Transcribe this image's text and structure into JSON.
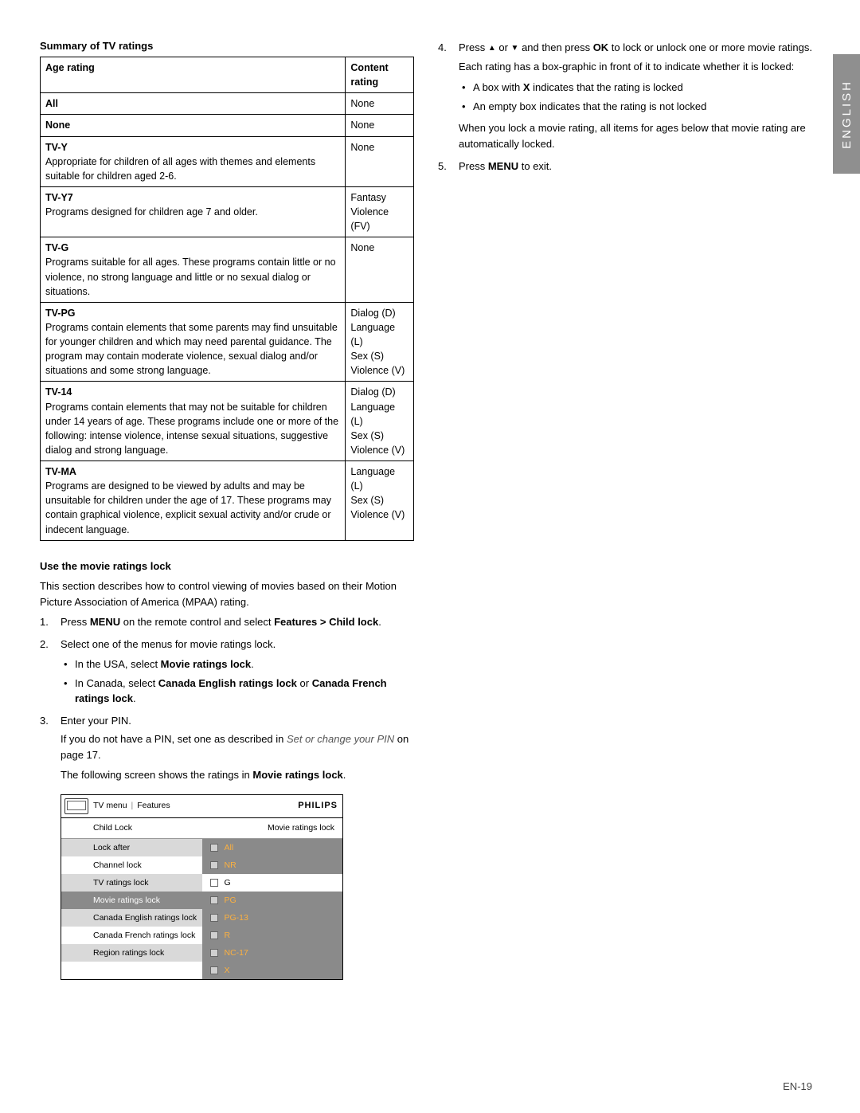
{
  "side_tab": "ENGLISH",
  "page_num": "EN-19",
  "summary": {
    "heading": "Summary of TV ratings",
    "col1_header": "Age rating",
    "col2_header": "Content rating",
    "rows": [
      {
        "name": "All",
        "desc": "",
        "content": "None"
      },
      {
        "name": "None",
        "desc": "",
        "content": "None"
      },
      {
        "name": "TV-Y",
        "desc": "Appropriate for children of all ages with themes and elements suitable for children aged 2-6.",
        "content": "None"
      },
      {
        "name": "TV-Y7",
        "desc": "Programs designed for children age 7 and older.",
        "content": "Fantasy Violence (FV)"
      },
      {
        "name": "TV-G",
        "desc": "Programs suitable for all ages.  These programs contain little or no violence, no strong language and little or no sexual dialog or situations.",
        "content": "None"
      },
      {
        "name": "TV-PG",
        "desc": "Programs contain elements that some parents may find unsuitable for younger children and which may need parental guidance.  The program may contain moderate violence, sexual dialog and/or situations and some strong language.",
        "content": "Dialog (D)\nLanguage (L)\nSex (S)\nViolence (V)"
      },
      {
        "name": "TV-14",
        "desc": "Programs contain elements that may not be suitable for children under 14 years of age.  These programs include one or more of the following: intense violence, intense sexual situations, suggestive dialog and strong language.",
        "content": "Dialog (D)\nLanguage (L)\nSex (S)\nViolence (V)"
      },
      {
        "name": "TV-MA",
        "desc": "Programs are designed to be viewed by adults and may be unsuitable for children under the age of 17. These programs may contain graphical violence, explicit sexual activity and/or crude or indecent language.",
        "content": "Language (L)\nSex (S)\nViolence (V)"
      }
    ]
  },
  "movie_lock": {
    "heading": "Use the movie ratings lock",
    "intro": "This section describes how to control viewing of movies based on their Motion Picture Association of America (MPAA) rating.",
    "step1_a": "Press ",
    "step1_menu": "MENU",
    "step1_b": " on the remote control and select ",
    "step1_path": "Features > Child lock",
    "step1_c": ".",
    "step2": "Select one of the menus for movie ratings lock.",
    "step2_b1_a": "In the USA, select ",
    "step2_b1_bold": "Movie ratings lock",
    "step2_b1_b": ".",
    "step2_b2_a": "In Canada, select ",
    "step2_b2_bold1": "Canada English ratings lock",
    "step2_b2_mid": " or ",
    "step2_b2_bold2": "Canada French ratings lock",
    "step2_b2_b": ".",
    "step3": "Enter your PIN.",
    "step3_note_a": "If you do not have a PIN, set one as described in ",
    "step3_note_it": "Set or change your PIN",
    "step3_note_b": " on page 17.",
    "step3_tail_a": "The following screen shows the ratings in ",
    "step3_tail_bold": "Movie ratings lock",
    "step3_tail_b": "."
  },
  "tv_menu": {
    "breadcrumb_a": "TV menu",
    "breadcrumb_b": "Features",
    "brand": "PHILIPS",
    "sub_left": "Child Lock",
    "sub_right": "Movie ratings lock",
    "left_items": [
      {
        "label": "Lock after",
        "style": "alt"
      },
      {
        "label": "Channel lock",
        "style": ""
      },
      {
        "label": "TV ratings lock",
        "style": "alt"
      },
      {
        "label": "Movie ratings lock",
        "style": "sel"
      },
      {
        "label": "Canada English ratings lock",
        "style": "alt"
      },
      {
        "label": "Canada French ratings lock",
        "style": ""
      },
      {
        "label": "Region ratings lock",
        "style": "alt"
      },
      {
        "label": "",
        "style": ""
      }
    ],
    "right_items": [
      {
        "label": "All",
        "on": true,
        "chk": "fill"
      },
      {
        "label": "NR",
        "on": true,
        "chk": "fill"
      },
      {
        "label": "G",
        "on": false,
        "chk": "empty"
      },
      {
        "label": "PG",
        "on": true,
        "chk": "fill"
      },
      {
        "label": "PG-13",
        "on": true,
        "chk": "fill"
      },
      {
        "label": "R",
        "on": true,
        "chk": "fill"
      },
      {
        "label": "NC-17",
        "on": true,
        "chk": "fill"
      },
      {
        "label": "X",
        "on": true,
        "chk": "fill"
      }
    ]
  },
  "right": {
    "step4_a": "Press ",
    "step4_b": " or ",
    "step4_c": " and then press ",
    "step4_ok": "OK",
    "step4_d": " to lock or unlock one or more movie ratings.",
    "step4_p2": "Each rating has a box-graphic in front of it to indicate whether it is locked:",
    "step4_b1_a": "A box with ",
    "step4_b1_x": "X",
    "step4_b1_b": " indicates that the rating is locked",
    "step4_b2": "An empty box indicates that the rating is not locked",
    "step4_p3": "When you lock a movie rating, all items for ages below that movie rating are automatically locked.",
    "step5_a": "Press ",
    "step5_menu": "MENU",
    "step5_b": " to exit."
  }
}
